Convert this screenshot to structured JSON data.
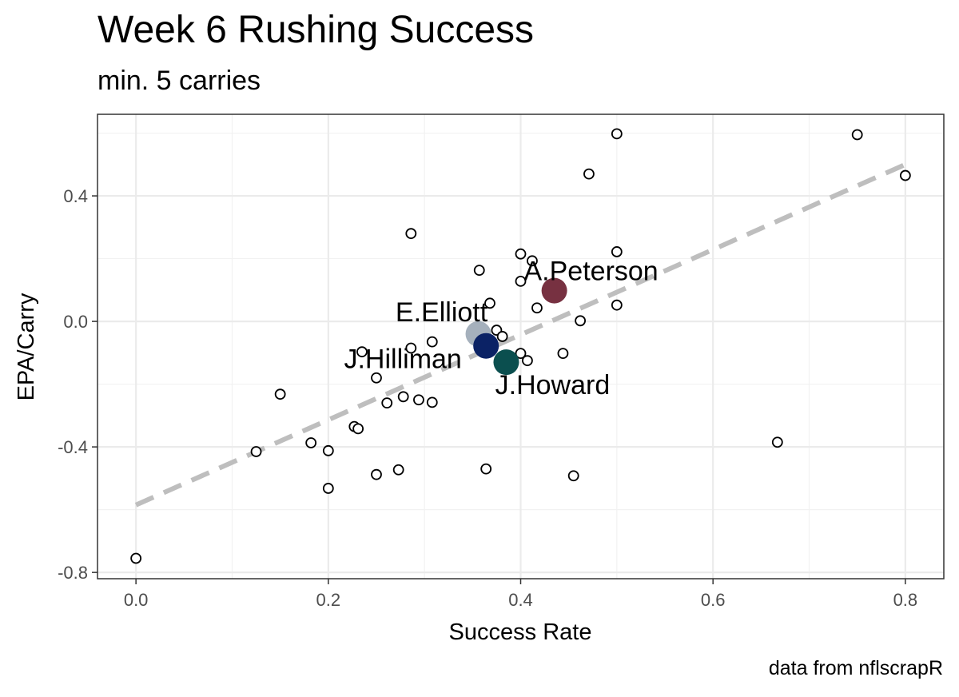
{
  "chart_data": {
    "type": "scatter",
    "title": "Week 6 Rushing Success",
    "subtitle": "min. 5 carries",
    "caption": "data from nflscrapR",
    "xlabel": "Success Rate",
    "ylabel": "EPA/Carry",
    "xlim": [
      -0.04,
      0.84
    ],
    "ylim": [
      -0.82,
      0.66
    ],
    "x_ticks": [
      0.0,
      0.2,
      0.4,
      0.6,
      0.8
    ],
    "x_tick_labels": [
      "0.0",
      "0.2",
      "0.4",
      "0.6",
      "0.8"
    ],
    "y_ticks": [
      -0.8,
      -0.4,
      0.0,
      0.4
    ],
    "y_tick_labels": [
      "-0.8",
      "-0.4",
      "0.0",
      "0.4"
    ],
    "grid": true,
    "trend_line": {
      "x": [
        0.0,
        0.8
      ],
      "y": [
        -0.585,
        0.5
      ],
      "color": "#bebebe",
      "style": "dashed"
    },
    "points": [
      {
        "x": 0.0,
        "y": -0.755
      },
      {
        "x": 0.125,
        "y": -0.415
      },
      {
        "x": 0.15,
        "y": -0.232
      },
      {
        "x": 0.182,
        "y": -0.387
      },
      {
        "x": 0.2,
        "y": -0.412
      },
      {
        "x": 0.2,
        "y": -0.532
      },
      {
        "x": 0.227,
        "y": -0.335
      },
      {
        "x": 0.231,
        "y": -0.342
      },
      {
        "x": 0.235,
        "y": -0.097
      },
      {
        "x": 0.25,
        "y": -0.18
      },
      {
        "x": 0.25,
        "y": -0.488
      },
      {
        "x": 0.261,
        "y": -0.26
      },
      {
        "x": 0.273,
        "y": -0.473
      },
      {
        "x": 0.278,
        "y": -0.24
      },
      {
        "x": 0.286,
        "y": 0.28
      },
      {
        "x": 0.286,
        "y": -0.085
      },
      {
        "x": 0.294,
        "y": -0.25
      },
      {
        "x": 0.308,
        "y": -0.065
      },
      {
        "x": 0.308,
        "y": -0.258
      },
      {
        "x": 0.357,
        "y": 0.163
      },
      {
        "x": 0.364,
        "y": -0.47
      },
      {
        "x": 0.368,
        "y": 0.058
      },
      {
        "x": 0.375,
        "y": -0.028
      },
      {
        "x": 0.381,
        "y": -0.048
      },
      {
        "x": 0.4,
        "y": 0.215
      },
      {
        "x": 0.4,
        "y": 0.128
      },
      {
        "x": 0.4,
        "y": -0.102
      },
      {
        "x": 0.407,
        "y": -0.125
      },
      {
        "x": 0.412,
        "y": 0.193
      },
      {
        "x": 0.417,
        "y": 0.043
      },
      {
        "x": 0.444,
        "y": -0.102
      },
      {
        "x": 0.455,
        "y": -0.492
      },
      {
        "x": 0.462,
        "y": 0.002
      },
      {
        "x": 0.471,
        "y": 0.47
      },
      {
        "x": 0.5,
        "y": 0.598
      },
      {
        "x": 0.5,
        "y": 0.222
      },
      {
        "x": 0.5,
        "y": 0.052
      },
      {
        "x": 0.667,
        "y": -0.385
      },
      {
        "x": 0.75,
        "y": 0.595
      },
      {
        "x": 0.8,
        "y": 0.465
      }
    ],
    "highlighted": [
      {
        "name": "E.Elliott",
        "x": 0.356,
        "y": -0.04,
        "color": "#a5b0bc"
      },
      {
        "name": "J.Hilliman",
        "x": 0.364,
        "y": -0.078,
        "color": "#0b2265"
      },
      {
        "name": "J.Howard",
        "x": 0.385,
        "y": -0.13,
        "color": "#0b4f4f"
      },
      {
        "name": "A.Peterson",
        "x": 0.435,
        "y": 0.098,
        "color": "#773141"
      }
    ]
  }
}
